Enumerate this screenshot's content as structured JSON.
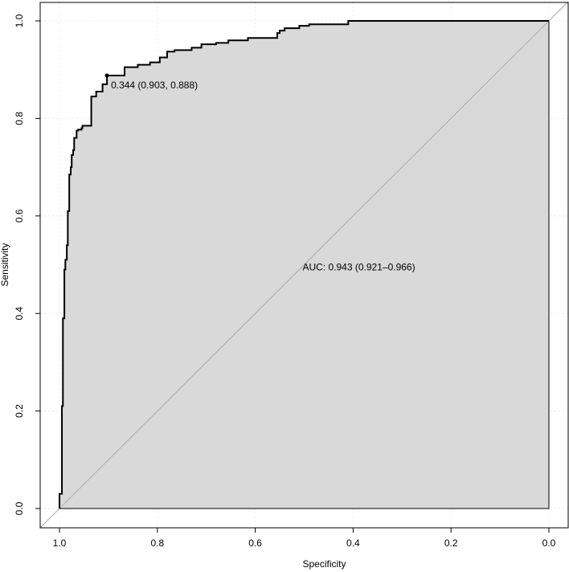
{
  "chart_data": {
    "type": "line",
    "title": "",
    "xlabel": "Specificity",
    "ylabel": "Sensitivity",
    "xlim": [
      1.0,
      0.0
    ],
    "ylim": [
      0.0,
      1.0
    ],
    "x_reversed": true,
    "x_ticks": [
      "1.0",
      "0.8",
      "0.6",
      "0.4",
      "0.2",
      "0.0"
    ],
    "y_ticks": [
      "0.0",
      "0.2",
      "0.4",
      "0.6",
      "0.8",
      "1.0"
    ],
    "grid": true,
    "auc_polygon_fill": "#d9d9d9",
    "curve_color": "#000000",
    "diagonal_color": "#aaaaaa",
    "roc_curve": {
      "specificity": [
        1.0,
        1.0,
        0.995,
        0.995,
        0.993,
        0.993,
        0.99,
        0.99,
        0.988,
        0.988,
        0.985,
        0.985,
        0.983,
        0.983,
        0.98,
        0.98,
        0.977,
        0.977,
        0.975,
        0.975,
        0.972,
        0.972,
        0.97,
        0.97,
        0.965,
        0.965,
        0.962,
        0.962,
        0.955,
        0.955,
        0.953,
        0.953,
        0.935,
        0.935,
        0.925,
        0.925,
        0.912,
        0.912,
        0.903,
        0.903,
        0.867,
        0.867,
        0.84,
        0.84,
        0.815,
        0.815,
        0.795,
        0.795,
        0.78,
        0.78,
        0.765,
        0.765,
        0.73,
        0.73,
        0.71,
        0.71,
        0.68,
        0.68,
        0.655,
        0.655,
        0.615,
        0.615,
        0.555,
        0.555,
        0.55,
        0.55,
        0.54,
        0.54,
        0.51,
        0.51,
        0.49,
        0.49,
        0.41,
        0.41,
        0.0
      ],
      "sensitivity": [
        0.0,
        0.03,
        0.03,
        0.21,
        0.21,
        0.39,
        0.39,
        0.49,
        0.49,
        0.51,
        0.51,
        0.54,
        0.54,
        0.61,
        0.61,
        0.685,
        0.685,
        0.7,
        0.7,
        0.725,
        0.725,
        0.735,
        0.735,
        0.76,
        0.76,
        0.775,
        0.775,
        0.777,
        0.777,
        0.78,
        0.78,
        0.785,
        0.785,
        0.845,
        0.845,
        0.855,
        0.855,
        0.87,
        0.87,
        0.888,
        0.888,
        0.905,
        0.905,
        0.91,
        0.91,
        0.915,
        0.915,
        0.925,
        0.925,
        0.937,
        0.937,
        0.94,
        0.94,
        0.945,
        0.945,
        0.952,
        0.952,
        0.955,
        0.955,
        0.96,
        0.96,
        0.965,
        0.965,
        0.975,
        0.975,
        0.98,
        0.98,
        0.985,
        0.985,
        0.99,
        0.99,
        0.993,
        0.993,
        1.0,
        1.0
      ]
    },
    "threshold_point": {
      "specificity": 0.903,
      "sensitivity": 0.888
    },
    "threshold_label": "0.344 (0.903, 0.888)",
    "auc_label": "AUC: 0.943 (0.921–0.966)",
    "auc_label_position_data": {
      "specificity": 0.5,
      "sensitivity": 0.495
    }
  }
}
